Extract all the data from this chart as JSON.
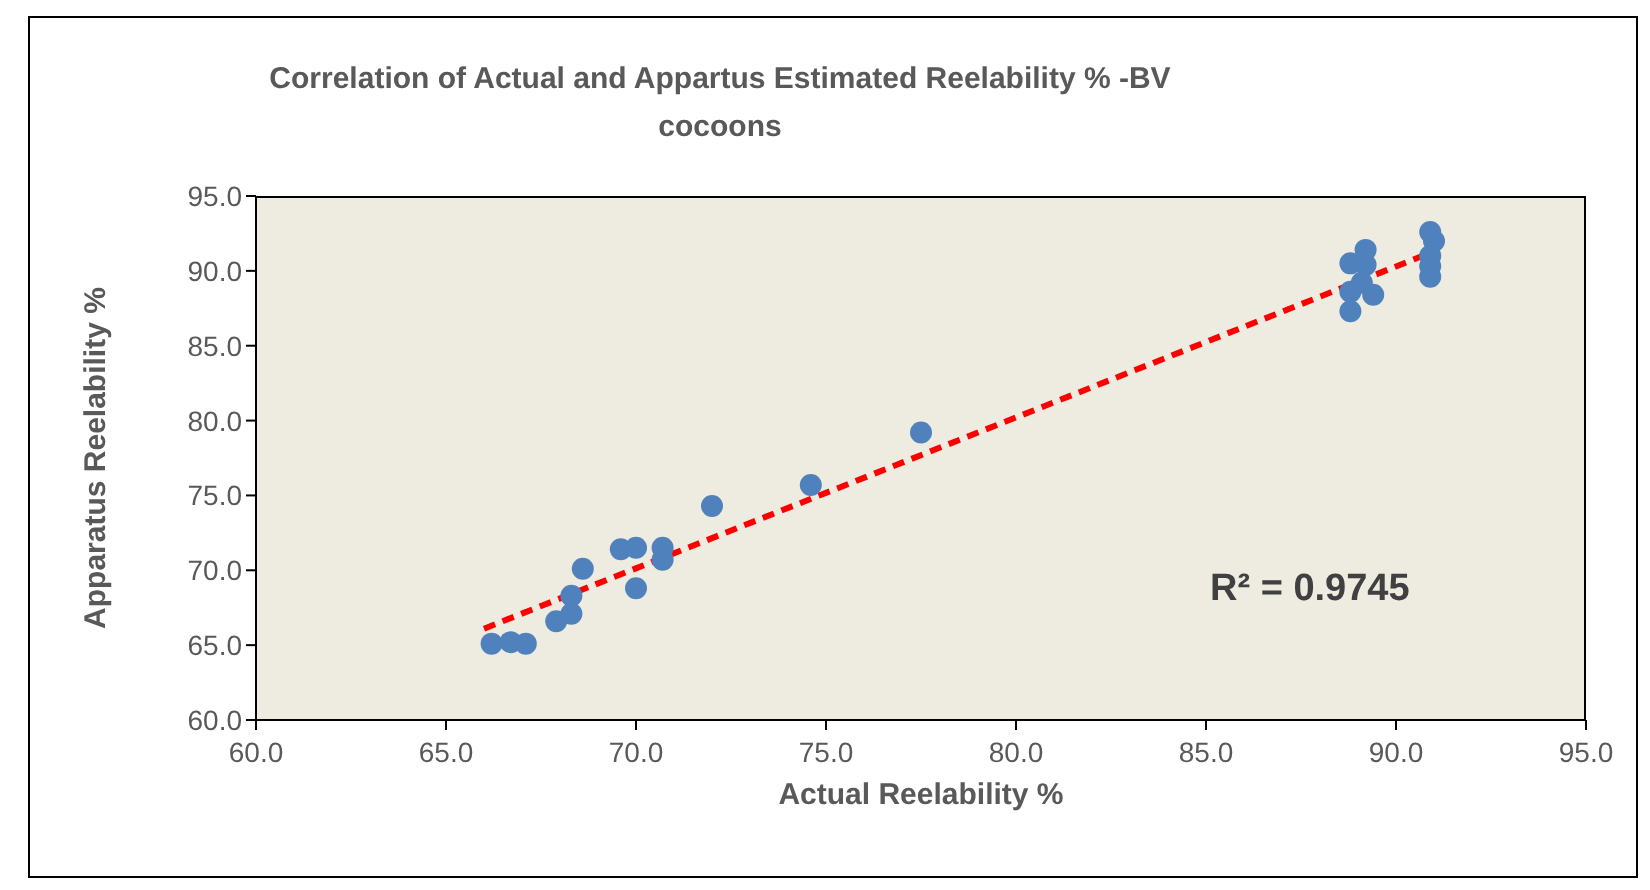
{
  "chart_data": {
    "type": "scatter",
    "title": "Correlation of Actual and Appartus Estimated Reelability % -BV cocoons",
    "xlabel": "Actual Reelability %",
    "ylabel": "Apparatus Reelability %",
    "xlim": [
      60,
      95
    ],
    "xticks": [
      {
        "value": 60,
        "label": "60.0"
      },
      {
        "value": 65,
        "label": "65.0"
      },
      {
        "value": 70,
        "label": "70.0"
      },
      {
        "value": 75,
        "label": "75.0"
      },
      {
        "value": 80,
        "label": "80.0"
      },
      {
        "value": 85,
        "label": "85.0"
      },
      {
        "value": 90,
        "label": "90.0"
      },
      {
        "value": 95,
        "label": "95.0"
      }
    ],
    "ylim": [
      60,
      95
    ],
    "yticks": [
      {
        "value": 60,
        "label": "60.0"
      },
      {
        "value": 65,
        "label": "65.0"
      },
      {
        "value": 70,
        "label": "70.0"
      },
      {
        "value": 75,
        "label": "75.0"
      },
      {
        "value": 80,
        "label": "80.0"
      },
      {
        "value": 85,
        "label": "85.0"
      },
      {
        "value": 90,
        "label": "90.0"
      },
      {
        "value": 95,
        "label": "95.0"
      }
    ],
    "grid": false,
    "legend": false,
    "marker": "circle",
    "series": [
      {
        "type": "scatter",
        "color": "#4f81bd",
        "x": [
          66.2,
          66.7,
          67.1,
          67.9,
          68.3,
          68.3,
          68.6,
          69.6,
          70.0,
          70.0,
          70.7,
          70.7,
          72.0,
          74.6,
          77.5,
          88.8,
          88.8,
          89.1,
          88.8,
          89.2,
          89.2,
          89.4,
          90.9,
          90.9,
          90.9,
          91.0,
          90.9
        ],
        "values": [
          65.1,
          65.2,
          65.1,
          66.6,
          67.1,
          68.3,
          70.1,
          71.4,
          71.5,
          68.8,
          71.5,
          70.7,
          74.3,
          75.7,
          79.2,
          87.3,
          88.6,
          89.2,
          90.5,
          90.4,
          91.4,
          88.4,
          89.6,
          90.3,
          91.0,
          92.0,
          92.6
        ]
      },
      {
        "type": "line",
        "color": "#ff0000",
        "line_style": "dashed",
        "marker": "none",
        "x": [
          66.0,
          91.0
        ],
        "values": [
          66.1,
          91.3
        ]
      }
    ],
    "annotations": [
      "R² = 0.9745"
    ]
  }
}
